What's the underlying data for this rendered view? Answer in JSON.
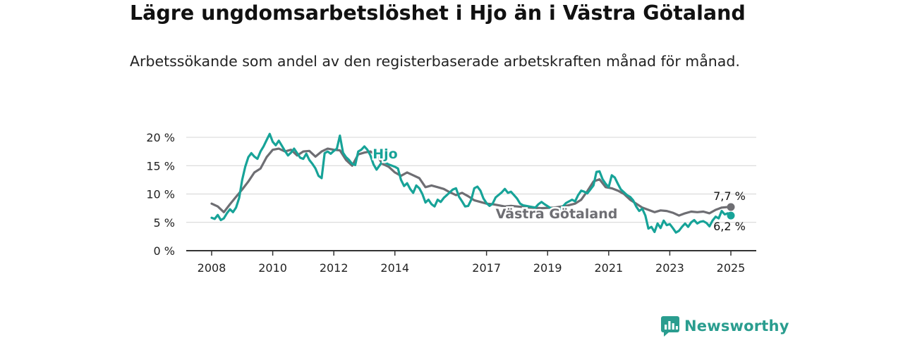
{
  "title": "Lägre ungdomsarbetslöshet i Hjo än i Västra Götaland",
  "subtitle": "Arbetssökande som andel av den registerbaserade arbetskraften månad för månad.",
  "brand": {
    "name": "Newsworthy",
    "color": "#2a9d8f"
  },
  "chart_data": {
    "type": "line",
    "title": "Lägre ungdomsarbetslöshet i Hjo än i Västra Götaland",
    "xlabel": "",
    "ylabel": "",
    "ylim": [
      0,
      20
    ],
    "y_ticks": [
      0,
      5,
      10,
      15,
      20
    ],
    "y_tick_labels": [
      "0 %",
      "5 %",
      "10 %",
      "15 %",
      "20 %"
    ],
    "xlim": [
      2008.0,
      2025.0
    ],
    "x_ticks": [
      2008,
      2010,
      2012,
      2014,
      2017,
      2019,
      2021,
      2023,
      2025
    ],
    "x_tick_labels": [
      "2008",
      "2010",
      "2012",
      "2014",
      "2017",
      "2019",
      "2021",
      "2023",
      "2025"
    ],
    "grid": true,
    "series": [
      {
        "name": "Västra Götaland",
        "label": "Västra Götaland",
        "color": "#6e6e73",
        "end_label": "7,7 %",
        "points": [
          [
            2008.0,
            8.3
          ],
          [
            2008.2,
            7.8
          ],
          [
            2008.4,
            6.8
          ],
          [
            2008.6,
            8.2
          ],
          [
            2008.8,
            9.5
          ],
          [
            2009.0,
            10.8
          ],
          [
            2009.2,
            12.2
          ],
          [
            2009.4,
            13.8
          ],
          [
            2009.6,
            14.5
          ],
          [
            2009.8,
            16.5
          ],
          [
            2010.0,
            17.8
          ],
          [
            2010.2,
            18.0
          ],
          [
            2010.4,
            17.5
          ],
          [
            2010.6,
            17.8
          ],
          [
            2010.8,
            16.8
          ],
          [
            2011.0,
            17.5
          ],
          [
            2011.2,
            17.6
          ],
          [
            2011.4,
            16.6
          ],
          [
            2011.6,
            17.5
          ],
          [
            2011.8,
            18.0
          ],
          [
            2012.0,
            17.8
          ],
          [
            2012.2,
            17.7
          ],
          [
            2012.4,
            16.0
          ],
          [
            2012.6,
            15.0
          ],
          [
            2012.8,
            17.0
          ],
          [
            2013.0,
            17.3
          ],
          [
            2013.2,
            17.5
          ],
          [
            2013.4,
            16.8
          ],
          [
            2013.6,
            15.3
          ],
          [
            2013.8,
            14.8
          ],
          [
            2014.0,
            13.8
          ],
          [
            2014.2,
            13.2
          ],
          [
            2014.4,
            13.8
          ],
          [
            2014.6,
            13.3
          ],
          [
            2014.8,
            12.8
          ],
          [
            2015.0,
            11.2
          ],
          [
            2015.2,
            11.5
          ],
          [
            2015.4,
            11.2
          ],
          [
            2015.6,
            10.9
          ],
          [
            2015.8,
            10.3
          ],
          [
            2016.0,
            9.8
          ],
          [
            2016.2,
            10.2
          ],
          [
            2016.4,
            9.6
          ],
          [
            2016.6,
            8.9
          ],
          [
            2016.8,
            8.6
          ],
          [
            2017.0,
            8.3
          ],
          [
            2017.2,
            8.2
          ],
          [
            2017.4,
            8.0
          ],
          [
            2017.6,
            7.8
          ],
          [
            2017.8,
            7.9
          ],
          [
            2018.0,
            7.8
          ],
          [
            2018.4,
            7.6
          ],
          [
            2018.8,
            7.5
          ],
          [
            2019.2,
            7.6
          ],
          [
            2019.6,
            7.9
          ],
          [
            2019.9,
            8.3
          ],
          [
            2020.1,
            9.0
          ],
          [
            2020.3,
            10.5
          ],
          [
            2020.5,
            12.2
          ],
          [
            2020.7,
            12.6
          ],
          [
            2020.9,
            11.2
          ],
          [
            2021.1,
            11.0
          ],
          [
            2021.3,
            10.6
          ],
          [
            2021.5,
            10.0
          ],
          [
            2021.7,
            9.0
          ],
          [
            2021.9,
            8.3
          ],
          [
            2022.1,
            7.6
          ],
          [
            2022.3,
            7.2
          ],
          [
            2022.5,
            6.8
          ],
          [
            2022.7,
            7.1
          ],
          [
            2022.9,
            7.0
          ],
          [
            2023.1,
            6.7
          ],
          [
            2023.3,
            6.2
          ],
          [
            2023.5,
            6.6
          ],
          [
            2023.7,
            6.9
          ],
          [
            2023.9,
            6.8
          ],
          [
            2024.1,
            6.9
          ],
          [
            2024.3,
            6.6
          ],
          [
            2024.5,
            7.2
          ],
          [
            2024.7,
            7.6
          ],
          [
            2024.9,
            7.7
          ],
          [
            2025.0,
            7.7
          ]
        ]
      },
      {
        "name": "Hjo",
        "label": "Hjo",
        "color": "#17a398",
        "end_label": "6,2 %",
        "points": [
          [
            2008.0,
            5.8
          ],
          [
            2008.1,
            5.6
          ],
          [
            2008.2,
            6.3
          ],
          [
            2008.3,
            5.4
          ],
          [
            2008.4,
            5.7
          ],
          [
            2008.5,
            6.6
          ],
          [
            2008.6,
            7.3
          ],
          [
            2008.7,
            6.8
          ],
          [
            2008.8,
            7.6
          ],
          [
            2008.9,
            9.3
          ],
          [
            2009.0,
            12.5
          ],
          [
            2009.1,
            14.8
          ],
          [
            2009.2,
            16.5
          ],
          [
            2009.3,
            17.2
          ],
          [
            2009.4,
            16.6
          ],
          [
            2009.5,
            16.2
          ],
          [
            2009.6,
            17.5
          ],
          [
            2009.7,
            18.4
          ],
          [
            2009.8,
            19.5
          ],
          [
            2009.9,
            20.6
          ],
          [
            2010.0,
            19.2
          ],
          [
            2010.1,
            18.6
          ],
          [
            2010.2,
            19.4
          ],
          [
            2010.3,
            18.5
          ],
          [
            2010.4,
            17.6
          ],
          [
            2010.5,
            16.8
          ],
          [
            2010.6,
            17.3
          ],
          [
            2010.7,
            18.0
          ],
          [
            2010.8,
            17.2
          ],
          [
            2010.9,
            16.4
          ],
          [
            2011.0,
            16.2
          ],
          [
            2011.1,
            17.1
          ],
          [
            2011.2,
            16.0
          ],
          [
            2011.3,
            15.3
          ],
          [
            2011.4,
            14.5
          ],
          [
            2011.5,
            13.2
          ],
          [
            2011.6,
            12.8
          ],
          [
            2011.7,
            17.2
          ],
          [
            2011.8,
            17.5
          ],
          [
            2011.9,
            17.1
          ],
          [
            2012.0,
            17.6
          ],
          [
            2012.1,
            18.0
          ],
          [
            2012.2,
            20.3
          ],
          [
            2012.3,
            17.3
          ],
          [
            2012.4,
            16.5
          ],
          [
            2012.5,
            16.0
          ],
          [
            2012.6,
            15.3
          ],
          [
            2012.7,
            15.1
          ],
          [
            2012.8,
            17.5
          ],
          [
            2012.9,
            17.8
          ],
          [
            2013.0,
            18.4
          ],
          [
            2013.1,
            17.8
          ],
          [
            2013.2,
            16.8
          ],
          [
            2013.3,
            15.2
          ],
          [
            2013.4,
            14.3
          ],
          [
            2013.6,
            15.8
          ],
          [
            2013.8,
            15.2
          ],
          [
            2014.0,
            14.8
          ],
          [
            2014.1,
            14.5
          ],
          [
            2014.2,
            12.5
          ],
          [
            2014.3,
            11.4
          ],
          [
            2014.4,
            11.9
          ],
          [
            2014.5,
            10.9
          ],
          [
            2014.6,
            10.2
          ],
          [
            2014.7,
            11.5
          ],
          [
            2014.8,
            11.0
          ],
          [
            2014.9,
            10.0
          ],
          [
            2015.0,
            8.5
          ],
          [
            2015.1,
            9.0
          ],
          [
            2015.2,
            8.2
          ],
          [
            2015.3,
            7.8
          ],
          [
            2015.4,
            9.0
          ],
          [
            2015.5,
            8.6
          ],
          [
            2015.6,
            9.3
          ],
          [
            2015.8,
            10.3
          ],
          [
            2015.9,
            10.8
          ],
          [
            2016.0,
            11.0
          ],
          [
            2016.1,
            9.5
          ],
          [
            2016.2,
            8.7
          ],
          [
            2016.3,
            7.8
          ],
          [
            2016.4,
            7.9
          ],
          [
            2016.5,
            9.0
          ],
          [
            2016.6,
            11.0
          ],
          [
            2016.7,
            11.3
          ],
          [
            2016.8,
            10.6
          ],
          [
            2016.9,
            9.2
          ],
          [
            2017.0,
            8.4
          ],
          [
            2017.1,
            7.9
          ],
          [
            2017.2,
            8.3
          ],
          [
            2017.3,
            9.4
          ],
          [
            2017.5,
            10.3
          ],
          [
            2017.6,
            10.9
          ],
          [
            2017.7,
            10.2
          ],
          [
            2017.8,
            10.4
          ],
          [
            2017.9,
            9.8
          ],
          [
            2018.0,
            9.2
          ],
          [
            2018.1,
            8.3
          ],
          [
            2018.2,
            8.0
          ],
          [
            2018.6,
            7.6
          ],
          [
            2018.7,
            8.2
          ],
          [
            2018.8,
            8.6
          ],
          [
            2018.9,
            8.2
          ],
          [
            2019.1,
            7.5
          ],
          [
            2019.4,
            7.3
          ],
          [
            2019.5,
            7.8
          ],
          [
            2019.6,
            8.4
          ],
          [
            2019.8,
            9.0
          ],
          [
            2019.9,
            8.7
          ],
          [
            2020.0,
            9.8
          ],
          [
            2020.1,
            10.6
          ],
          [
            2020.2,
            10.4
          ],
          [
            2020.3,
            10.1
          ],
          [
            2020.4,
            10.8
          ],
          [
            2020.5,
            11.5
          ],
          [
            2020.6,
            13.9
          ],
          [
            2020.7,
            14.0
          ],
          [
            2020.8,
            12.6
          ],
          [
            2020.9,
            11.8
          ],
          [
            2021.0,
            11.2
          ],
          [
            2021.1,
            13.3
          ],
          [
            2021.2,
            12.9
          ],
          [
            2021.3,
            11.8
          ],
          [
            2021.4,
            10.8
          ],
          [
            2021.5,
            10.3
          ],
          [
            2021.6,
            9.8
          ],
          [
            2021.7,
            9.5
          ],
          [
            2021.8,
            8.9
          ],
          [
            2021.9,
            7.8
          ],
          [
            2022.0,
            7.0
          ],
          [
            2022.1,
            7.4
          ],
          [
            2022.2,
            6.2
          ],
          [
            2022.3,
            3.9
          ],
          [
            2022.4,
            4.2
          ],
          [
            2022.5,
            3.3
          ],
          [
            2022.6,
            4.8
          ],
          [
            2022.7,
            4.0
          ],
          [
            2022.8,
            5.3
          ],
          [
            2022.9,
            4.5
          ],
          [
            2023.0,
            4.7
          ],
          [
            2023.1,
            4.0
          ],
          [
            2023.2,
            3.2
          ],
          [
            2023.3,
            3.5
          ],
          [
            2023.4,
            4.2
          ],
          [
            2023.5,
            4.8
          ],
          [
            2023.6,
            4.2
          ],
          [
            2023.7,
            5.0
          ],
          [
            2023.8,
            5.4
          ],
          [
            2023.9,
            4.8
          ],
          [
            2024.0,
            5.1
          ],
          [
            2024.1,
            5.2
          ],
          [
            2024.2,
            4.9
          ],
          [
            2024.3,
            4.3
          ],
          [
            2024.4,
            5.3
          ],
          [
            2024.5,
            6.0
          ],
          [
            2024.6,
            5.7
          ],
          [
            2024.7,
            7.0
          ],
          [
            2024.8,
            6.4
          ],
          [
            2024.9,
            6.6
          ],
          [
            2025.0,
            6.2
          ]
        ]
      }
    ]
  }
}
